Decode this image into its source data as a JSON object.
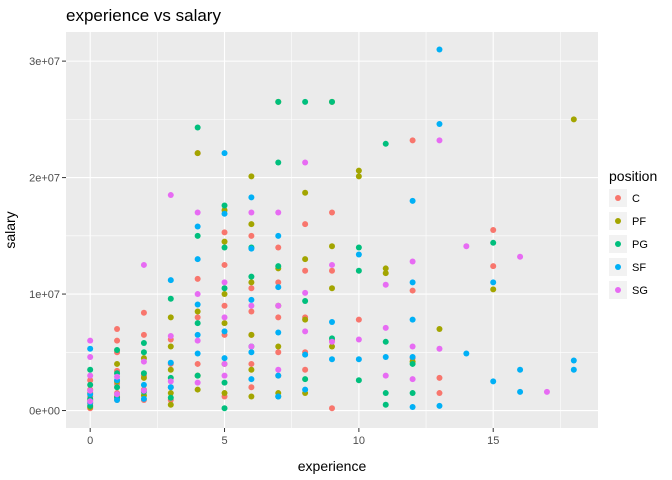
{
  "chart_data": {
    "type": "scatter",
    "title": "experience vs salary",
    "xlabel": "experience",
    "ylabel": "salary",
    "xlim": [
      -0.9,
      18.9
    ],
    "ylim": [
      -1500000,
      32500000
    ],
    "x_ticks": [
      0,
      5,
      10,
      15
    ],
    "x_tick_labels": [
      "0",
      "5",
      "10",
      "15"
    ],
    "y_ticks": [
      0,
      10000000,
      20000000,
      30000000
    ],
    "y_tick_labels": [
      "0e+00",
      "1e+07",
      "2e+07",
      "3e+07"
    ],
    "grid": true,
    "legend_title": "position",
    "legend_position": "right",
    "series": [
      {
        "name": "C",
        "color": "#F8766D",
        "points": [
          [
            0,
            200000
          ],
          [
            0,
            600000
          ],
          [
            0,
            1200000
          ],
          [
            0,
            1800000
          ],
          [
            0,
            2600000
          ],
          [
            1,
            900000
          ],
          [
            1,
            1500000
          ],
          [
            1,
            2300000
          ],
          [
            1,
            3400000
          ],
          [
            1,
            5000000
          ],
          [
            1,
            6000000
          ],
          [
            1,
            7000000
          ],
          [
            2,
            900000
          ],
          [
            2,
            1800000
          ],
          [
            2,
            3000000
          ],
          [
            2,
            6500000
          ],
          [
            2,
            8400000
          ],
          [
            3,
            900000
          ],
          [
            3,
            2000000
          ],
          [
            3,
            4000000
          ],
          [
            3,
            6100000
          ],
          [
            4,
            4000000
          ],
          [
            4,
            8000000
          ],
          [
            4,
            11300000
          ],
          [
            4,
            22100000
          ],
          [
            5,
            1200000
          ],
          [
            5,
            6500000
          ],
          [
            5,
            9000000
          ],
          [
            5,
            12500000
          ],
          [
            5,
            15300000
          ],
          [
            6,
            2000000
          ],
          [
            6,
            4000000
          ],
          [
            6,
            6500000
          ],
          [
            6,
            8500000
          ],
          [
            6,
            10500000
          ],
          [
            6,
            15000000
          ],
          [
            7,
            3000000
          ],
          [
            7,
            5000000
          ],
          [
            7,
            8000000
          ],
          [
            7,
            11000000
          ],
          [
            7,
            14000000
          ],
          [
            8,
            3500000
          ],
          [
            8,
            5000000
          ],
          [
            8,
            8000000
          ],
          [
            8,
            12000000
          ],
          [
            8,
            16000000
          ],
          [
            9,
            200000
          ],
          [
            9,
            6000000
          ],
          [
            9,
            12000000
          ],
          [
            9,
            17000000
          ],
          [
            10,
            7800000
          ],
          [
            12,
            23200000
          ],
          [
            12,
            10300000
          ],
          [
            12,
            4500000
          ],
          [
            13,
            2800000
          ],
          [
            13,
            1500000
          ],
          [
            15,
            15500000
          ],
          [
            15,
            12400000
          ]
        ]
      },
      {
        "name": "PF",
        "color": "#A3A500",
        "points": [
          [
            0,
            300000
          ],
          [
            0,
            900000
          ],
          [
            0,
            1500000
          ],
          [
            1,
            1200000
          ],
          [
            1,
            2500000
          ],
          [
            1,
            4000000
          ],
          [
            2,
            1300000
          ],
          [
            2,
            2800000
          ],
          [
            2,
            4500000
          ],
          [
            3,
            500000
          ],
          [
            3,
            1500000
          ],
          [
            3,
            3500000
          ],
          [
            3,
            5500000
          ],
          [
            3,
            8000000
          ],
          [
            4,
            1800000
          ],
          [
            4,
            3000000
          ],
          [
            4,
            8500000
          ],
          [
            4,
            22100000
          ],
          [
            5,
            1500000
          ],
          [
            5,
            4000000
          ],
          [
            5,
            7500000
          ],
          [
            5,
            10000000
          ],
          [
            5,
            14500000
          ],
          [
            5,
            17200000
          ],
          [
            6,
            1200000
          ],
          [
            6,
            3500000
          ],
          [
            6,
            6500000
          ],
          [
            6,
            11000000
          ],
          [
            6,
            16000000
          ],
          [
            6,
            20100000
          ],
          [
            7,
            1500000
          ],
          [
            7,
            5500000
          ],
          [
            7,
            9000000
          ],
          [
            7,
            12200000
          ],
          [
            7,
            26500000
          ],
          [
            8,
            1500000
          ],
          [
            8,
            7800000
          ],
          [
            8,
            13000000
          ],
          [
            8,
            18700000
          ],
          [
            9,
            5500000
          ],
          [
            9,
            10500000
          ],
          [
            9,
            14100000
          ],
          [
            9,
            26500000
          ],
          [
            10,
            20600000
          ],
          [
            10,
            20100000
          ],
          [
            11,
            12200000
          ],
          [
            11,
            11800000
          ],
          [
            12,
            4200000
          ],
          [
            13,
            7000000
          ],
          [
            15,
            10400000
          ],
          [
            18,
            25000000
          ]
        ]
      },
      {
        "name": "PG",
        "color": "#00BF7D",
        "points": [
          [
            0,
            400000
          ],
          [
            0,
            1000000
          ],
          [
            0,
            2200000
          ],
          [
            0,
            3500000
          ],
          [
            1,
            1100000
          ],
          [
            1,
            2000000
          ],
          [
            1,
            3200000
          ],
          [
            1,
            5200000
          ],
          [
            2,
            1600000
          ],
          [
            2,
            3200000
          ],
          [
            2,
            5000000
          ],
          [
            2,
            5800000
          ],
          [
            3,
            1100000
          ],
          [
            3,
            2800000
          ],
          [
            3,
            9600000
          ],
          [
            4,
            24300000
          ],
          [
            4,
            15000000
          ],
          [
            4,
            7500000
          ],
          [
            4,
            3000000
          ],
          [
            5,
            17600000
          ],
          [
            5,
            14000000
          ],
          [
            5,
            10500000
          ],
          [
            5,
            2400000
          ],
          [
            5,
            200000
          ],
          [
            6,
            14000000
          ],
          [
            6,
            11500000
          ],
          [
            6,
            5500000
          ],
          [
            7,
            26500000
          ],
          [
            7,
            21300000
          ],
          [
            7,
            12400000
          ],
          [
            7,
            1200000
          ],
          [
            8,
            26500000
          ],
          [
            8,
            9400000
          ],
          [
            8,
            2700000
          ],
          [
            9,
            26500000
          ],
          [
            9,
            6200000
          ],
          [
            10,
            14000000
          ],
          [
            10,
            12000000
          ],
          [
            10,
            2600000
          ],
          [
            11,
            22900000
          ],
          [
            11,
            5900000
          ],
          [
            11,
            1500000
          ],
          [
            11,
            500000
          ],
          [
            12,
            4000000
          ],
          [
            12,
            1500000
          ],
          [
            15,
            14400000
          ]
        ]
      },
      {
        "name": "SF",
        "color": "#00B0F6",
        "points": [
          [
            0,
            5300000
          ],
          [
            0,
            1400000
          ],
          [
            0,
            700000
          ],
          [
            1,
            2600000
          ],
          [
            1,
            900000
          ],
          [
            2,
            2200000
          ],
          [
            2,
            1000000
          ],
          [
            3,
            11200000
          ],
          [
            3,
            4100000
          ],
          [
            3,
            2000000
          ],
          [
            4,
            15800000
          ],
          [
            4,
            13000000
          ],
          [
            4,
            9100000
          ],
          [
            4,
            6500000
          ],
          [
            4,
            4900000
          ],
          [
            5,
            22100000
          ],
          [
            5,
            16900000
          ],
          [
            5,
            6800000
          ],
          [
            5,
            4500000
          ],
          [
            6,
            18300000
          ],
          [
            6,
            13900000
          ],
          [
            6,
            9500000
          ],
          [
            6,
            5000000
          ],
          [
            6,
            2700000
          ],
          [
            7,
            15000000
          ],
          [
            7,
            10600000
          ],
          [
            7,
            6700000
          ],
          [
            7,
            3000000
          ],
          [
            7,
            1200000
          ],
          [
            8,
            4800000
          ],
          [
            8,
            1800000
          ],
          [
            9,
            7600000
          ],
          [
            9,
            4400000
          ],
          [
            10,
            13400000
          ],
          [
            10,
            4400000
          ],
          [
            11,
            4600000
          ],
          [
            12,
            18000000
          ],
          [
            12,
            11000000
          ],
          [
            12,
            7800000
          ],
          [
            12,
            4600000
          ],
          [
            12,
            300000
          ],
          [
            13,
            31000000
          ],
          [
            13,
            24600000
          ],
          [
            13,
            400000
          ],
          [
            14,
            4900000
          ],
          [
            15,
            11000000
          ],
          [
            15,
            2500000
          ],
          [
            16,
            3500000
          ],
          [
            16,
            1600000
          ],
          [
            18,
            4300000
          ],
          [
            18,
            3500000
          ]
        ]
      },
      {
        "name": "SG",
        "color": "#E76BF3",
        "points": [
          [
            0,
            6000000
          ],
          [
            0,
            4600000
          ],
          [
            0,
            3000000
          ],
          [
            0,
            1700000
          ],
          [
            0,
            800000
          ],
          [
            1,
            1400000
          ],
          [
            1,
            2900000
          ],
          [
            2,
            12500000
          ],
          [
            2,
            4200000
          ],
          [
            2,
            1700000
          ],
          [
            3,
            18500000
          ],
          [
            3,
            6400000
          ],
          [
            3,
            2500000
          ],
          [
            4,
            17000000
          ],
          [
            4,
            10000000
          ],
          [
            4,
            6000000
          ],
          [
            4,
            2400000
          ],
          [
            5,
            11000000
          ],
          [
            5,
            8000000
          ],
          [
            5,
            4000000
          ],
          [
            5,
            3000000
          ],
          [
            6,
            17000000
          ],
          [
            6,
            9000000
          ],
          [
            6,
            5500000
          ],
          [
            7,
            17000000
          ],
          [
            7,
            9000000
          ],
          [
            7,
            3500000
          ],
          [
            8,
            21300000
          ],
          [
            8,
            10100000
          ],
          [
            8,
            6800000
          ],
          [
            9,
            12500000
          ],
          [
            9,
            5900000
          ],
          [
            10,
            6100000
          ],
          [
            11,
            10800000
          ],
          [
            11,
            7100000
          ],
          [
            11,
            3000000
          ],
          [
            12,
            12800000
          ],
          [
            12,
            5500000
          ],
          [
            12,
            2700000
          ],
          [
            13,
            23200000
          ],
          [
            13,
            5300000
          ],
          [
            14,
            14100000
          ],
          [
            16,
            13200000
          ],
          [
            17,
            1600000
          ]
        ]
      }
    ]
  }
}
